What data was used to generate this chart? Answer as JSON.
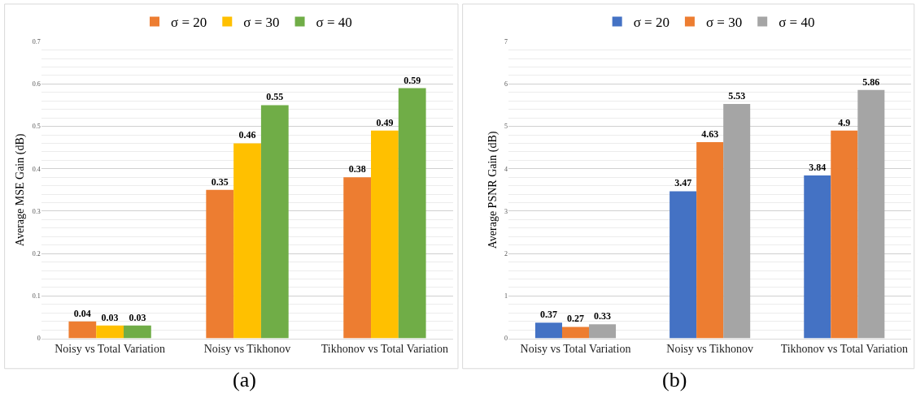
{
  "chart_data": [
    {
      "type": "bar",
      "categories": [
        "Noisy vs Total Variation",
        "Noisy vs Tikhonov",
        "Tikhonov vs Total Variation"
      ],
      "ylabel": "Average MSE Gain (dB)",
      "series": [
        {
          "name": "σ = 20",
          "color": "#ed7d31",
          "values": [
            0.04,
            0.35,
            0.38
          ]
        },
        {
          "name": "σ = 30",
          "color": "#ffc000",
          "values": [
            0.03,
            0.46,
            0.49
          ]
        },
        {
          "name": "σ = 40",
          "color": "#70ad47",
          "values": [
            0.03,
            0.55,
            0.59
          ]
        }
      ],
      "ylim": [
        0,
        0.7
      ],
      "yticks": [
        0,
        0.1,
        0.2,
        0.3,
        0.4,
        0.5,
        0.6,
        0.7
      ],
      "grid": "y",
      "legend": "top",
      "data_labels": true,
      "annotations": [
        "(a)"
      ]
    },
    {
      "type": "bar",
      "categories": [
        "Noisy vs Total Variation",
        "Noisy vs Tikhonov",
        "Tikhonov vs Total Variation"
      ],
      "ylabel": "Average PSNR Gain (dB)",
      "series": [
        {
          "name": "σ = 20",
          "color": "#4472c4",
          "values": [
            0.37,
            3.47,
            3.84
          ]
        },
        {
          "name": "σ = 30",
          "color": "#ed7d31",
          "values": [
            0.27,
            4.63,
            4.9
          ]
        },
        {
          "name": "σ = 40",
          "color": "#a5a5a5",
          "values": [
            0.33,
            5.53,
            5.86
          ]
        }
      ],
      "ylim": [
        0,
        7
      ],
      "yticks": [
        0,
        1,
        2,
        3,
        4,
        5,
        6,
        7
      ],
      "grid": "y",
      "legend": "top",
      "data_labels": true,
      "annotations": [
        "(b)"
      ]
    }
  ]
}
